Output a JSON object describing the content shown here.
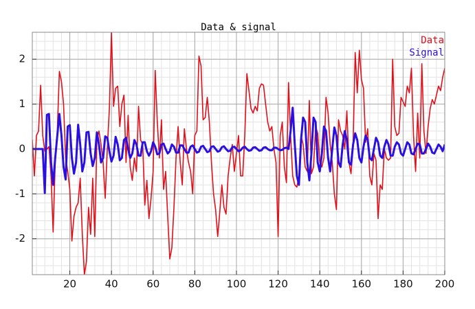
{
  "chart_data": {
    "type": "line",
    "title": "Data & signal",
    "x": [
      1,
      2,
      3,
      4,
      5,
      6,
      7,
      8,
      9,
      10,
      11,
      12,
      13,
      14,
      15,
      16,
      17,
      18,
      19,
      20,
      21,
      22,
      23,
      24,
      25,
      26,
      27,
      28,
      29,
      30,
      31,
      32,
      33,
      34,
      35,
      36,
      37,
      38,
      39,
      40,
      41,
      42,
      43,
      44,
      45,
      46,
      47,
      48,
      49,
      50,
      51,
      52,
      53,
      54,
      55,
      56,
      57,
      58,
      59,
      60,
      61,
      62,
      63,
      64,
      65,
      66,
      67,
      68,
      69,
      70,
      71,
      72,
      73,
      74,
      75,
      76,
      77,
      78,
      79,
      80,
      81,
      82,
      83,
      84,
      85,
      86,
      87,
      88,
      89,
      90,
      91,
      92,
      93,
      94,
      95,
      96,
      97,
      98,
      99,
      100,
      101,
      102,
      103,
      104,
      105,
      106,
      107,
      108,
      109,
      110,
      111,
      112,
      113,
      114,
      115,
      116,
      117,
      118,
      119,
      120,
      121,
      122,
      123,
      124,
      125,
      126,
      127,
      128,
      129,
      130,
      131,
      132,
      133,
      134,
      135,
      136,
      137,
      138,
      139,
      140,
      141,
      142,
      143,
      144,
      145,
      146,
      147,
      148,
      149,
      150,
      151,
      152,
      153,
      154,
      155,
      156,
      157,
      158,
      159,
      160,
      161,
      162,
      163,
      164,
      165,
      166,
      167,
      168,
      169,
      170,
      171,
      172,
      173,
      174,
      175,
      176,
      177,
      178,
      179,
      180,
      181,
      182,
      183,
      184,
      185,
      186,
      187,
      188,
      189,
      190,
      191,
      192,
      193,
      194,
      195,
      196,
      197,
      198,
      199,
      200
    ],
    "series": [
      {
        "name": "Data",
        "color": "#e0101a",
        "values": [
          -0.2,
          0.2,
          -0.6,
          0.3,
          0.4,
          1.42,
          0.3,
          -0.05,
          0,
          0.05,
          -0.6,
          -1.85,
          -0.3,
          0.4,
          1.73,
          1.5,
          1,
          -0.2,
          -0.5,
          -0.9,
          -2.05,
          -1.5,
          -1.3,
          -1.2,
          -0.65,
          -1.9,
          -2.8,
          -2.5,
          -1.3,
          -1.9,
          -0.65,
          -1.95,
          0.2,
          0.4,
          0.1,
          -0.3,
          -1.1,
          0,
          0.9,
          2.6,
          0.95,
          1.35,
          1.4,
          0.5,
          1,
          1.2,
          -0.3,
          0.75,
          -0.4,
          -0.7,
          -0.2,
          -0.5,
          0.95,
          0.2,
          0.1,
          -1.25,
          -0.7,
          -1.55,
          -1.1,
          -0.5,
          1.75,
          0.6,
          -0.2,
          0.65,
          -0.9,
          -0.5,
          -1.5,
          -2.45,
          -2.2,
          -1.3,
          -0.2,
          0.5,
          -0.3,
          -0.8,
          0.45,
          0,
          -0.3,
          -0.5,
          -1,
          0.3,
          0.4,
          2.07,
          1.85,
          0.65,
          0.7,
          1.15,
          0.6,
          -0.3,
          -1,
          -1.35,
          -1.95,
          -1.4,
          -0.8,
          -1.3,
          -1.45,
          -0.6,
          -0.2,
          0.1,
          -0.5,
          -0.1,
          0.3,
          -0.6,
          -0.6,
          0.3,
          1.68,
          1.3,
          0.9,
          0.8,
          0.95,
          0.85,
          1.35,
          1.45,
          1.42,
          1,
          0.6,
          0.4,
          0.5,
          0,
          -0.3,
          -1.95,
          0.3,
          0.6,
          -0.4,
          -0.75,
          1.48,
          0.3,
          -0.6,
          -0.8,
          -0.85,
          -0.6,
          0.3,
          0.1,
          -0.4,
          -0.5,
          1.08,
          -0.55,
          -0.4,
          0.5,
          0.35,
          -0.3,
          -0.4,
          -0.2,
          1.15,
          0.8,
          0.1,
          -0.3,
          -1,
          -1.35,
          0.65,
          0.4,
          0.3,
          0,
          0.85,
          -0.3,
          -0.55,
          0.1,
          2.15,
          1.25,
          2.2,
          1.55,
          1.35,
          0.15,
          0.45,
          -0.6,
          -0.8,
          -0.1,
          -0.25,
          -1.55,
          -0.8,
          -0.9,
          0,
          -0.2,
          -0.25,
          -0.2,
          2,
          0.5,
          0.3,
          0.35,
          1.15,
          1.05,
          0.95,
          1.4,
          1.25,
          1.8,
          0.3,
          -0.5,
          0.8,
          -0.2,
          1.9,
          0.4,
          -0.1,
          0.5,
          0.9,
          1.1,
          1,
          1.2,
          1.4,
          1.3,
          1.6,
          1.8
        ]
      },
      {
        "name": "Signal",
        "color": "#2a10e0",
        "values": [
          0,
          0,
          0,
          0,
          0,
          0,
          0,
          -0.98,
          0.76,
          0.78,
          -0.3,
          -0.8,
          -0.2,
          0.3,
          0.78,
          0.3,
          -0.4,
          -0.68,
          0.5,
          0.53,
          -0.2,
          -0.55,
          -0.3,
          0.54,
          0.1,
          -0.5,
          -0.3,
          0.37,
          0.38,
          -0.1,
          -0.38,
          -0.2,
          0.37,
          0.1,
          -0.3,
          -0.2,
          0.28,
          0.25,
          -0.05,
          -0.28,
          -0.15,
          0.27,
          0.1,
          -0.25,
          -0.2,
          0.2,
          0.25,
          0,
          -0.2,
          -0.1,
          0.2,
          0.1,
          -0.15,
          -0.15,
          0.15,
          0.15,
          -0.05,
          -0.15,
          -0.05,
          0.15,
          0.05,
          -0.12,
          -0.1,
          0.1,
          0.12,
          0,
          -0.1,
          -0.05,
          0.1,
          0.05,
          -0.08,
          -0.08,
          0.08,
          0.08,
          0,
          -0.08,
          -0.08,
          0.05,
          0.08,
          0,
          -0.08,
          -0.06,
          0.05,
          0.07,
          0,
          -0.07,
          -0.05,
          0.05,
          0.06,
          0,
          -0.06,
          -0.04,
          0.04,
          0.06,
          0,
          -0.05,
          -0.04,
          0.04,
          0.05,
          0,
          -0.05,
          -0.03,
          0.03,
          0.05,
          0,
          -0.04,
          -0.03,
          0.03,
          0.04,
          0,
          -0.04,
          -0.03,
          0.03,
          0.04,
          0,
          -0.03,
          -0.03,
          0.03,
          0.03,
          0,
          -0.03,
          -0.02,
          0.02,
          0.03,
          0,
          0.4,
          0.92,
          0.1,
          -0.6,
          -0.8,
          0.2,
          0.7,
          0.6,
          -0.3,
          -0.7,
          -0.1,
          0.7,
          0.6,
          -0.3,
          -0.5,
          -0.1,
          0.5,
          0.4,
          -0.2,
          -0.5,
          0,
          0.48,
          0.3,
          -0.3,
          -0.4,
          0.1,
          0.4,
          0.2,
          -0.3,
          -0.35,
          0.1,
          0.35,
          0.2,
          -0.2,
          -0.3,
          0.05,
          0.3,
          0.2,
          -0.2,
          -0.25,
          0,
          0.25,
          0.15,
          -0.15,
          -0.2,
          0.05,
          0.2,
          0.1,
          -0.15,
          -0.15,
          0.05,
          0.15,
          0.1,
          -0.1,
          -0.15,
          0,
          0.15,
          0.1,
          -0.1,
          -0.12,
          0,
          0.12,
          0.1,
          -0.1,
          -0.1,
          0,
          0.12,
          0.05,
          -0.08,
          -0.1,
          0,
          0.1,
          0.05,
          -0.05,
          0.1
        ]
      }
    ],
    "xlim": [
      2,
      200
    ],
    "xticks": [
      20,
      40,
      60,
      80,
      100,
      120,
      140,
      160,
      180,
      200
    ],
    "ylim": [
      -2.8,
      2.6
    ],
    "yticks": [
      -2,
      -1,
      0,
      1,
      2
    ],
    "grid": true,
    "minor_grid": true,
    "legend": "upper right"
  }
}
